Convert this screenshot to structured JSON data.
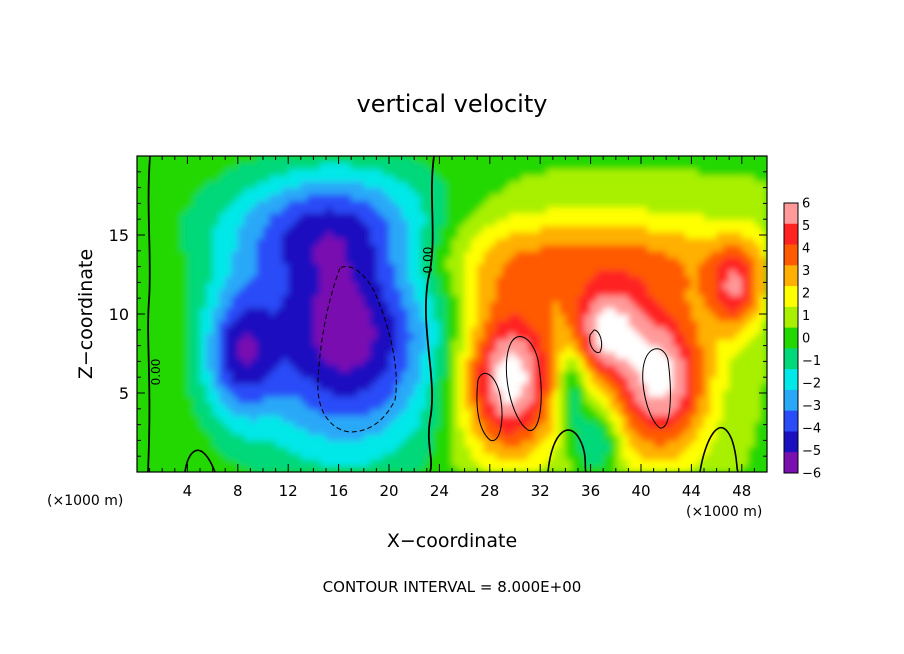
{
  "chart_data": {
    "type": "heatmap",
    "title": "vertical velocity",
    "xlabel": "X−coordinate",
    "ylabel": "Z−coordinate",
    "x_unit_left": "(×1000 m)",
    "x_unit_right": "(×1000 m)",
    "footer": "CONTOUR INTERVAL = 8.000E+00",
    "contour_label": "0.00",
    "xlim": [
      0,
      50
    ],
    "ylim": [
      0,
      20
    ],
    "x_ticks": [
      "4",
      "8",
      "12",
      "16",
      "20",
      "24",
      "28",
      "32",
      "36",
      "40",
      "44",
      "48"
    ],
    "y_ticks": [
      "5",
      "10",
      "15"
    ],
    "colorbar": {
      "min": -6,
      "max": 6,
      "labels": [
        "6",
        "5",
        "4",
        "3",
        "2",
        "1",
        "0",
        "−1",
        "−2",
        "−3",
        "−4",
        "−5",
        "−6"
      ],
      "colors": [
        "#ff9a9a",
        "#ff2222",
        "#ff5a00",
        "#ffb000",
        "#ffff00",
        "#a8f000",
        "#22d800",
        "#00d87a",
        "#00e8e8",
        "#2aa8f8",
        "#2a4cf8",
        "#1a10c0",
        "#7a10b0"
      ]
    },
    "features": [
      {
        "kind": "downdraft",
        "x": 16.5,
        "z": 9.0,
        "sx": 5.5,
        "sz": 5.5,
        "w": -6.5
      },
      {
        "kind": "downdraft",
        "x": 8.0,
        "z": 7.5,
        "sx": 2.0,
        "sz": 3.0,
        "w": -4.0
      },
      {
        "kind": "downdraft",
        "x": 14.5,
        "z": 15.5,
        "sx": 6.5,
        "sz": 2.5,
        "w": -3.0
      },
      {
        "kind": "updraft",
        "x": 29.5,
        "z": 6.0,
        "sx": 2.8,
        "sz": 3.5,
        "w": 7.0
      },
      {
        "kind": "updraft",
        "x": 41.5,
        "z": 6.0,
        "sx": 2.8,
        "sz": 3.5,
        "w": 6.5
      },
      {
        "kind": "updraft",
        "x": 37.0,
        "z": 9.0,
        "sx": 2.0,
        "sz": 2.0,
        "w": 5.0
      },
      {
        "kind": "updraft",
        "x": 35.0,
        "z": 13.5,
        "sx": 11.0,
        "sz": 2.2,
        "w": 3.2
      },
      {
        "kind": "updraft",
        "x": 47.5,
        "z": 11.5,
        "sx": 1.5,
        "sz": 2.0,
        "w": 4.0
      },
      {
        "kind": "downdraft",
        "x": 34.5,
        "z": 5.5,
        "sx": 0.8,
        "sz": 2.0,
        "w": -3.0
      },
      {
        "kind": "downdraft",
        "x": 36.5,
        "z": 2.0,
        "sx": 1.2,
        "sz": 1.5,
        "w": -2.5
      }
    ]
  }
}
